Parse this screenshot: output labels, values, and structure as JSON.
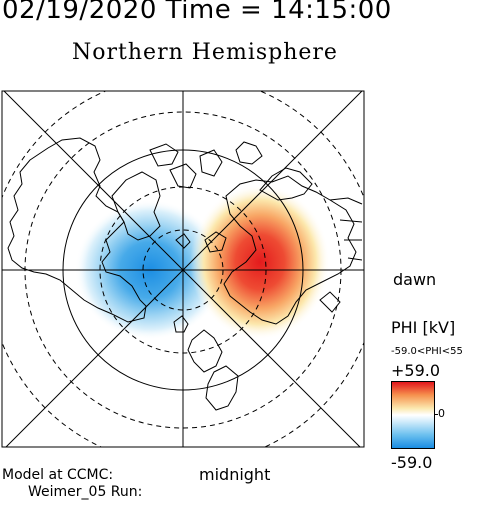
{
  "header": {
    "date_time": "02/19/2020 Time = 14:15:00",
    "title": "Northern Hemisphere"
  },
  "map": {
    "dawn_label": "dawn",
    "midnight_label": "midnight"
  },
  "footer": {
    "model_label": "Model at CCMC:",
    "run_label": "Weimer_05 Run:"
  },
  "colorbar": {
    "title": "PHI [kV]",
    "range_text": "-59.0<PHI<55",
    "max_label": "+59.0",
    "min_label": "-59.0",
    "zero_label": "0",
    "colors": [
      "#e2161c",
      "#f6924f",
      "#fbe9b0",
      "#ffffff",
      "#d1ecfb",
      "#6cc0ef",
      "#1a8de3"
    ]
  }
}
